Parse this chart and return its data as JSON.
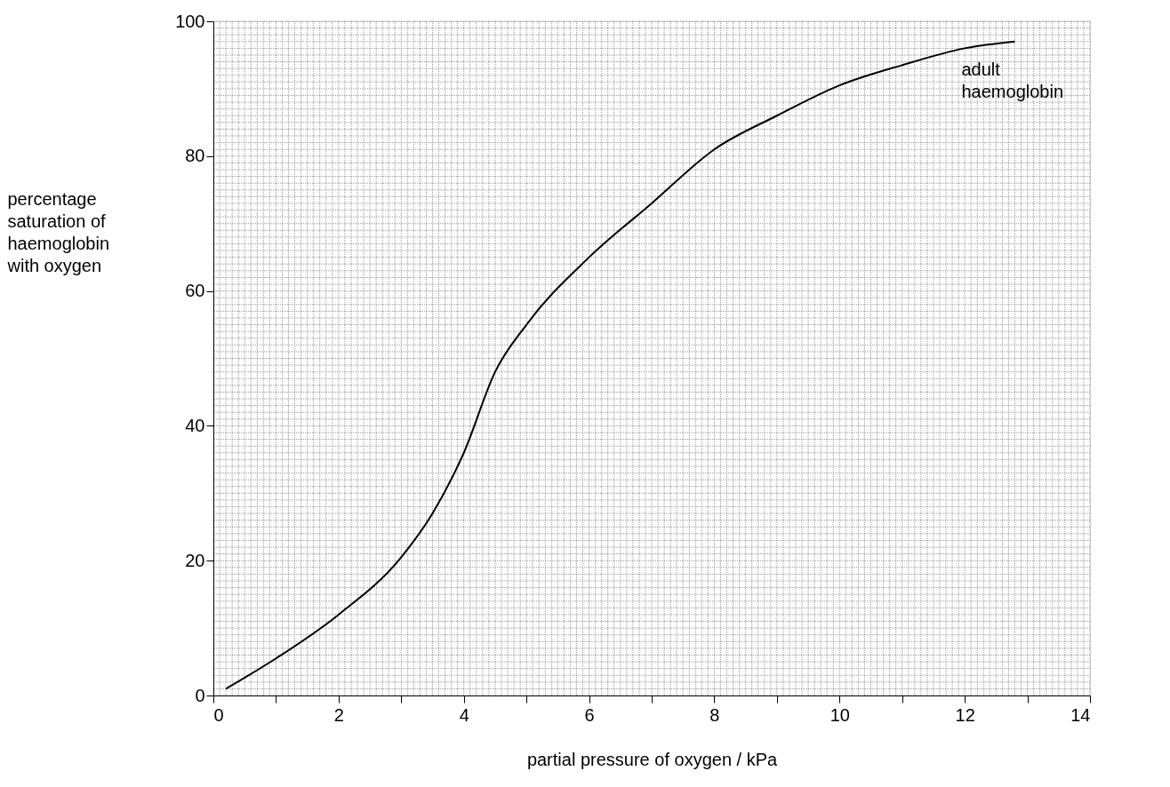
{
  "chart_data": {
    "type": "line",
    "xlabel": "partial pressure of oxygen / kPa",
    "ylabel": "percentage saturation of haemoglobin with oxygen",
    "x": [
      0.2,
      1,
      2,
      3,
      3.5,
      4,
      4.5,
      5,
      6,
      7,
      8,
      9,
      10,
      11,
      12,
      12.8
    ],
    "series": [
      {
        "name": "adult haemoglobin",
        "color": "#000000",
        "values": [
          1,
          5.5,
          12,
          20.5,
          27,
          36,
          48,
          55,
          65,
          73,
          81,
          86,
          90.5,
          93.5,
          96,
          97
        ]
      }
    ],
    "xlim": [
      0,
      14
    ],
    "ylim": [
      0,
      100
    ],
    "xticks": [
      0,
      {
        "value": 1,
        "label": null
      },
      2,
      {
        "value": 3,
        "label": null
      },
      4,
      {
        "value": 5,
        "label": null
      },
      6,
      {
        "value": 7,
        "label": null
      },
      8,
      {
        "value": 9,
        "label": null
      },
      10,
      {
        "value": 11,
        "label": null
      },
      12,
      {
        "value": 13,
        "label": null
      },
      14
    ],
    "yticks": [
      0,
      20,
      40,
      60,
      80,
      100
    ],
    "grid": true,
    "legend": false,
    "marker": "none",
    "line_style": "solid"
  }
}
